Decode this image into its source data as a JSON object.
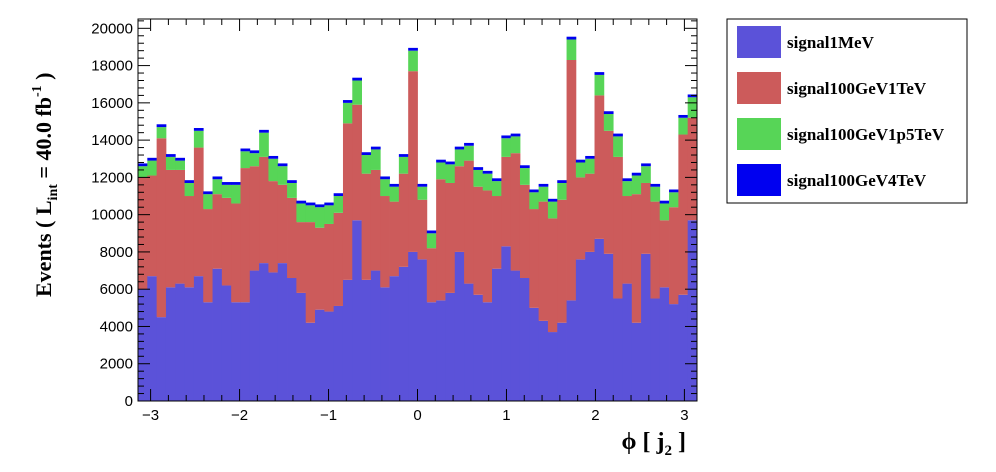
{
  "chart_data": {
    "type": "bar",
    "stacked": true,
    "x": {
      "range": [
        -3.1416,
        3.1416
      ],
      "bins": 60,
      "ticks": [
        -3,
        -2,
        -1,
        0,
        1,
        2,
        3
      ],
      "tick_labels": [
        "−3",
        "−2",
        "−1",
        "0",
        "1",
        "2",
        "3"
      ],
      "label": "ϕ [ j2 ]",
      "label_main": "ϕ [ j",
      "label_sub": "2",
      "label_end": " ]"
    },
    "y": {
      "range": [
        0,
        20500
      ],
      "ticks": [
        0,
        2000,
        4000,
        6000,
        8000,
        10000,
        12000,
        14000,
        16000,
        18000,
        20000
      ],
      "label": "Events ( Lint = 40.0 fb-1 )",
      "label_main": "Events ( L",
      "label_sub": "int",
      "label_mid": " = 40.0 fb",
      "label_sup": "-1",
      "label_end": " )"
    },
    "legend_position": "top-right, outside plot",
    "series": [
      {
        "name": "signal1MeV",
        "color": "#5b52d9",
        "values": [
          6000,
          6700,
          4500,
          6100,
          6300,
          6100,
          6700,
          5300,
          7100,
          6200,
          5300,
          5300,
          7000,
          7400,
          6900,
          7400,
          6600,
          5800,
          4200,
          4900,
          4800,
          5100,
          6500,
          9700,
          6500,
          7000,
          6100,
          6700,
          7200,
          8000,
          7600,
          5300,
          5400,
          5800,
          8000,
          6300,
          5700,
          5300,
          7100,
          8300,
          7000,
          6600,
          5000,
          4300,
          3700,
          4200,
          5400,
          7600,
          8000,
          8700,
          7900,
          5500,
          6300,
          4200,
          7900,
          5500,
          6100,
          5200,
          5700,
          9700
        ]
      },
      {
        "name": "signal100GeV1TeV",
        "color": "#cc5b5b",
        "values": [
          6000,
          5400,
          9600,
          6300,
          6100,
          4900,
          6900,
          5000,
          4000,
          4700,
          5300,
          7200,
          5600,
          5700,
          4900,
          4200,
          4300,
          3800,
          5400,
          4400,
          4700,
          5000,
          8400,
          6200,
          5700,
          5400,
          4900,
          4000,
          5000,
          9700,
          3200,
          2900,
          6500,
          5900,
          4600,
          6600,
          5800,
          6000,
          3900,
          4800,
          6300,
          5000,
          5300,
          6400,
          6100,
          6600,
          12900,
          4400,
          4200,
          7700,
          6600,
          7600,
          4700,
          6900,
          3800,
          5200,
          3600,
          5200,
          8600,
          5500
        ]
      },
      {
        "name": "signal100GeV1p5TeV",
        "color": "#57d557",
        "values": [
          600,
          800,
          600,
          700,
          500,
          700,
          900,
          800,
          800,
          700,
          1000,
          900,
          700,
          1300,
          1200,
          1000,
          800,
          1000,
          900,
          1100,
          1000,
          900,
          1100,
          1300,
          1000,
          1100,
          900,
          800,
          900,
          1100,
          700,
          800,
          900,
          1000,
          900,
          800,
          900,
          900,
          800,
          1000,
          900,
          900,
          900,
          800,
          900,
          900,
          1100,
          800,
          800,
          1100,
          900,
          1100,
          800,
          1000,
          900,
          800,
          900,
          800,
          900,
          1100
        ]
      },
      {
        "name": "signal100GeV4TeV",
        "color": "#0000f0",
        "values": [
          150,
          150,
          150,
          150,
          150,
          150,
          150,
          150,
          150,
          150,
          150,
          150,
          150,
          150,
          150,
          150,
          150,
          150,
          150,
          150,
          150,
          150,
          150,
          150,
          150,
          150,
          150,
          150,
          150,
          150,
          150,
          150,
          150,
          150,
          150,
          150,
          150,
          150,
          150,
          150,
          150,
          150,
          150,
          150,
          150,
          150,
          150,
          150,
          150,
          150,
          150,
          150,
          150,
          150,
          150,
          150,
          150,
          150,
          150,
          150
        ]
      }
    ]
  }
}
